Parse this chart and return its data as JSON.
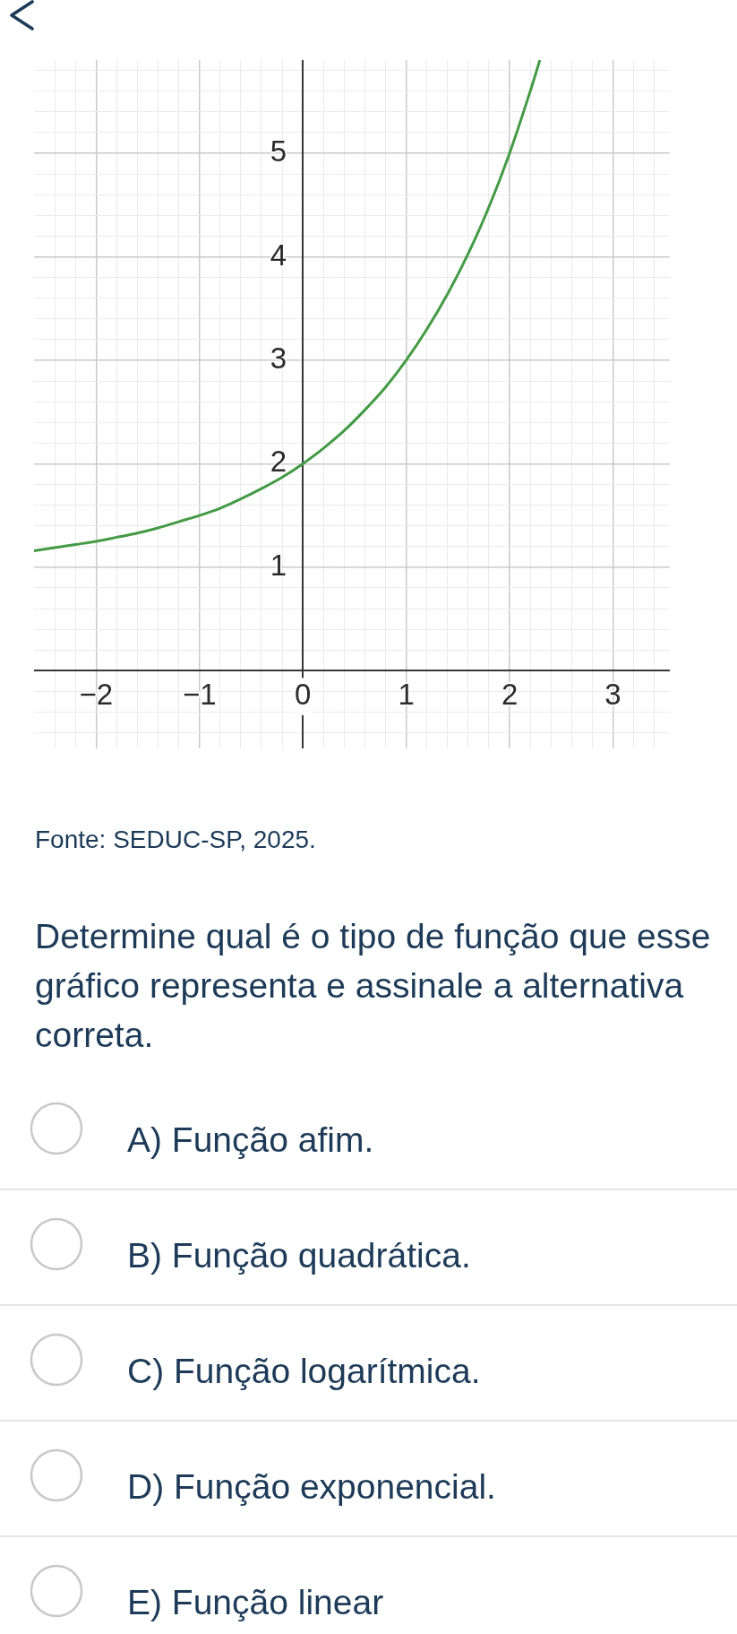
{
  "chart_data": {
    "type": "line",
    "x": [
      -2.6,
      -2.4,
      -2.2,
      -2,
      -1.8,
      -1.6,
      -1.4,
      -1.2,
      -1,
      -0.8,
      -0.6,
      -0.4,
      -0.2,
      0,
      0.2,
      0.4,
      0.6,
      0.8,
      1,
      1.2,
      1.4,
      1.6,
      1.8,
      2,
      2.2,
      2.29
    ],
    "series": [
      {
        "color": "#449a45",
        "values": [
          1.16,
          1.19,
          1.22,
          1.25,
          1.29,
          1.33,
          1.38,
          1.44,
          1.5,
          1.57,
          1.66,
          1.76,
          1.87,
          2,
          2.15,
          2.32,
          2.52,
          2.74,
          3,
          3.3,
          3.64,
          4.03,
          4.48,
          5,
          5.6,
          5.89
        ]
      }
    ],
    "xlim": [
      -2.6,
      3.55
    ],
    "ylim": [
      -0.75,
      5.9
    ],
    "xticks": [
      {
        "value": -2.4,
        "label": null
      },
      {
        "value": -2.2,
        "label": null
      },
      {
        "value": -2,
        "label": "−2"
      },
      {
        "value": -1.8,
        "label": null
      },
      {
        "value": -1.6,
        "label": null
      },
      {
        "value": -1.4,
        "label": null
      },
      {
        "value": -1.2,
        "label": null
      },
      {
        "value": -1,
        "label": "−1"
      },
      {
        "value": -0.8,
        "label": null
      },
      {
        "value": -0.6,
        "label": null
      },
      {
        "value": -0.4,
        "label": null
      },
      {
        "value": -0.2,
        "label": null
      },
      0,
      {
        "value": 0.2,
        "label": null
      },
      {
        "value": 0.4,
        "label": null
      },
      {
        "value": 0.6,
        "label": null
      },
      {
        "value": 0.8,
        "label": null
      },
      1,
      {
        "value": 1.2,
        "label": null
      },
      {
        "value": 1.4,
        "label": null
      },
      {
        "value": 1.6,
        "label": null
      },
      {
        "value": 1.8,
        "label": null
      },
      2,
      {
        "value": 2.2,
        "label": null
      },
      {
        "value": 2.4,
        "label": null
      },
      {
        "value": 2.6,
        "label": null
      },
      {
        "value": 2.8,
        "label": null
      },
      3,
      {
        "value": 3.2,
        "label": null
      },
      {
        "value": 3.4,
        "label": null
      }
    ],
    "yticks": [
      {
        "value": -0.6,
        "label": null
      },
      {
        "value": -0.4,
        "label": null
      },
      {
        "value": -0.2,
        "label": null
      },
      {
        "value": 0.2,
        "label": null
      },
      {
        "value": 0.4,
        "label": null
      },
      {
        "value": 0.6,
        "label": null
      },
      {
        "value": 0.8,
        "label": null
      },
      1,
      {
        "value": 1.2,
        "label": null
      },
      {
        "value": 1.4,
        "label": null
      },
      {
        "value": 1.6,
        "label": null
      },
      {
        "value": 1.8,
        "label": null
      },
      2,
      {
        "value": 2.2,
        "label": null
      },
      {
        "value": 2.4,
        "label": null
      },
      {
        "value": 2.6,
        "label": null
      },
      {
        "value": 2.8,
        "label": null
      },
      3,
      {
        "value": 3.2,
        "label": null
      },
      {
        "value": 3.4,
        "label": null
      },
      {
        "value": 3.6,
        "label": null
      },
      {
        "value": 3.8,
        "label": null
      },
      4,
      {
        "value": 4.2,
        "label": null
      },
      {
        "value": 4.4,
        "label": null
      },
      {
        "value": 4.6,
        "label": null
      },
      {
        "value": 4.8,
        "label": null
      },
      5,
      {
        "value": 5.2,
        "label": null
      },
      {
        "value": 5.4,
        "label": null
      },
      {
        "value": 5.6,
        "label": null
      },
      {
        "value": 5.8,
        "label": null
      }
    ],
    "grid": true,
    "marker": "none",
    "annotations": [
      "Fonte: SEDUC-SP, 2025.",
      "Determine qual é o tipo de função que esse gráfico representa e assinale a alternativa correta.",
      "A) Função afim.",
      "B) Função quadrática.",
      "C) Função logarítmica.",
      "D) Função exponencial.",
      "E) Função linear"
    ]
  }
}
